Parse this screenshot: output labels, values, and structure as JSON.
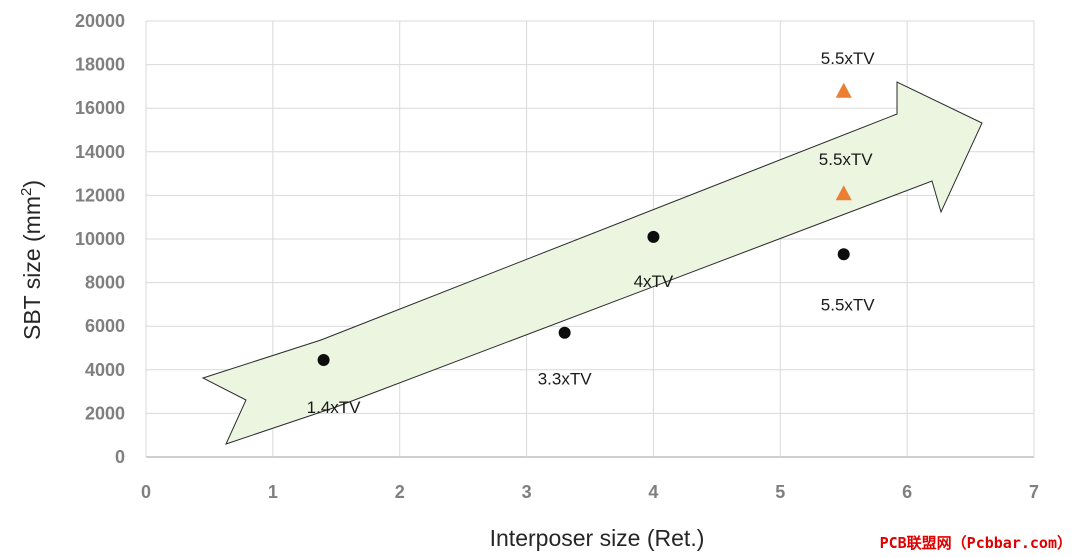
{
  "watermark": "PCB联盟网（Pcbbar.com）",
  "chart_data": {
    "type": "scatter",
    "title": "",
    "xlabel": "Interposer size (Ret.)",
    "ylabel_main": "SBT size (mm",
    "ylabel_sup": "2",
    "ylabel_close": ")",
    "xlim": [
      0,
      7
    ],
    "ylim": [
      0,
      20000
    ],
    "xticks": [
      "0",
      "1",
      "2",
      "3",
      "4",
      "5",
      "6",
      "7"
    ],
    "yticks": [
      "0",
      "2000",
      "4000",
      "6000",
      "8000",
      "10000",
      "12000",
      "14000",
      "16000",
      "18000",
      "20000"
    ],
    "grid": true,
    "series": [
      {
        "marker": "circle",
        "color": "#0d0d0d",
        "points": [
          {
            "x": 1.4,
            "y": 4450,
            "label": "1.4xTV"
          },
          {
            "x": 3.3,
            "y": 5700,
            "label": "3.3xTV"
          },
          {
            "x": 4.0,
            "y": 10100,
            "label": "4xTV"
          },
          {
            "x": 5.5,
            "y": 9300,
            "label": "5.5xTV"
          }
        ]
      },
      {
        "marker": "triangle",
        "color": "#ed7d31",
        "points": [
          {
            "x": 5.5,
            "y": 12100,
            "label": "5.5xTV"
          },
          {
            "x": 5.5,
            "y": 16800,
            "label": "5.5xTV"
          }
        ]
      }
    ],
    "trend_arrow": {
      "fill": "#ebf5df",
      "stroke": "#2b2b2b"
    }
  }
}
